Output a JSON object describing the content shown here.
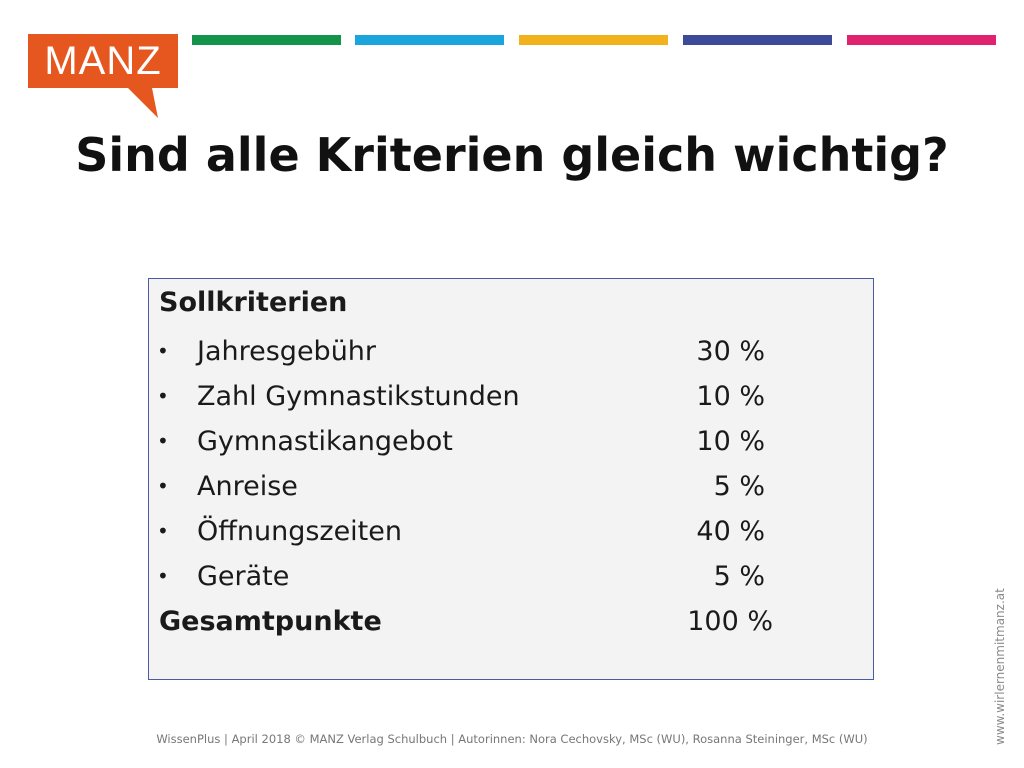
{
  "logo": {
    "text": "MANZ",
    "color": "#e5571f"
  },
  "stripes": [
    "#13944a",
    "#1aa6dc",
    "#f2b21c",
    "#3d4a9a",
    "#e0236f"
  ],
  "title": "Sind alle Kriterien gleich wichtig?",
  "box": {
    "heading": "Sollkriterien",
    "items": [
      {
        "label": "Jahresgebühr",
        "value": "30 %"
      },
      {
        "label": "Zahl Gymnastikstunden",
        "value": "10 %"
      },
      {
        "label": "Gymnastikangebot",
        "value": "10 %"
      },
      {
        "label": "Anreise",
        "value": "5 %"
      },
      {
        "label": "Öffnungszeiten",
        "value": "40 %"
      },
      {
        "label": "Geräte",
        "value": "5 %"
      }
    ],
    "total": {
      "label": "Gesamtpunkte",
      "value": "100 %"
    }
  },
  "footer": "WissenPlus | April 2018 © MANZ Verlag Schulbuch | Autorinnen: Nora Cechovsky, MSc (WU), Rosanna Steininger, MSc (WU)",
  "side_url": "www.wirlernenmitmanz.at"
}
